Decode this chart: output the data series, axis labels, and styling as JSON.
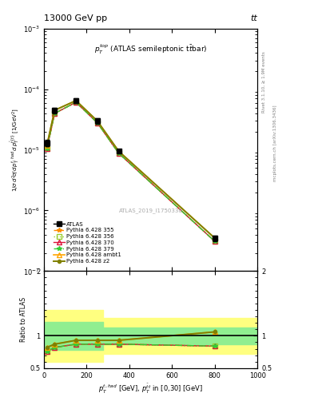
{
  "title_left": "13000 GeV pp",
  "title_right": "tt",
  "annotation_center": "$p_T^{top}$ (ATLAS semileptonic ttbar)",
  "watermark": "ATLAS_2019_I1750330",
  "right_label_top": "Rivet 3.1.10, ≥ 1.9M events",
  "right_label_bottom": "mcplots.cern.ch [arXiv:1306.3436]",
  "xlim": [
    0,
    1000
  ],
  "ylim_main": [
    1e-07,
    0.001
  ],
  "ylim_ratio": [
    0.5,
    2.0
  ],
  "x_data": [
    14,
    50,
    150,
    250,
    350,
    800
  ],
  "atlas_y": [
    1.3e-05,
    4.5e-05,
    6.5e-05,
    3e-05,
    9.5e-06,
    3.5e-07
  ],
  "atlas_yerr": [
    1.5e-06,
    5e-06,
    5e-06,
    3e-06,
    8e-07,
    4e-08
  ],
  "py355_y": [
    1.05e-05,
    4e-05,
    6.1e-05,
    2.8e-05,
    8.8e-06,
    3.1e-07
  ],
  "py356_y": [
    1.05e-05,
    4e-05,
    6.1e-05,
    2.8e-05,
    8.8e-06,
    3.1e-07
  ],
  "py370_y": [
    1.05e-05,
    4e-05,
    6.1e-05,
    2.8e-05,
    8.8e-06,
    3.1e-07
  ],
  "py379_y": [
    1.05e-05,
    4e-05,
    6.1e-05,
    2.8e-05,
    8.8e-06,
    3.1e-07
  ],
  "pyambt1_y": [
    1.2e-05,
    4.5e-05,
    6.5e-05,
    3e-05,
    9.5e-06,
    3.5e-07
  ],
  "pyz2_y": [
    1.2e-05,
    4.5e-05,
    6.5e-05,
    3e-05,
    9.5e-06,
    3.5e-07
  ],
  "ratio_x": [
    14,
    50,
    150,
    250,
    350,
    800
  ],
  "py355_ratio": [
    0.76,
    0.82,
    0.87,
    0.87,
    0.87,
    0.84
  ],
  "py356_ratio": [
    0.76,
    0.82,
    0.87,
    0.87,
    0.87,
    0.84
  ],
  "py370_ratio": [
    0.76,
    0.82,
    0.87,
    0.87,
    0.87,
    0.84
  ],
  "py379_ratio": [
    0.76,
    0.82,
    0.87,
    0.87,
    0.87,
    0.84
  ],
  "pyambt1_ratio": [
    0.82,
    0.87,
    0.93,
    0.93,
    0.93,
    1.06
  ],
  "pyz2_ratio": [
    0.82,
    0.87,
    0.93,
    0.93,
    0.93,
    1.06
  ],
  "band_yellow_x1_lo": 0,
  "band_yellow_x1_hi": 275,
  "band_yellow1_lo": 0.6,
  "band_yellow1_hi": 1.4,
  "band_yellow_x2_lo": 275,
  "band_yellow_x2_hi": 1000,
  "band_yellow2_lo": 0.72,
  "band_yellow2_hi": 1.28,
  "band_green_x1_lo": 0,
  "band_green_x1_hi": 275,
  "band_green1_lo": 0.78,
  "band_green1_hi": 1.22,
  "band_green_x2_lo": 275,
  "band_green_x2_hi": 1000,
  "band_green2_lo": 0.87,
  "band_green2_hi": 1.13,
  "color_py355": "#ff8c00",
  "color_py356": "#9acd32",
  "color_py370": "#dc143c",
  "color_py379": "#32cd32",
  "color_pyambt1": "#ffa500",
  "color_pyz2": "#808000",
  "color_band_yellow": "#ffff80",
  "color_band_green": "#90ee90"
}
